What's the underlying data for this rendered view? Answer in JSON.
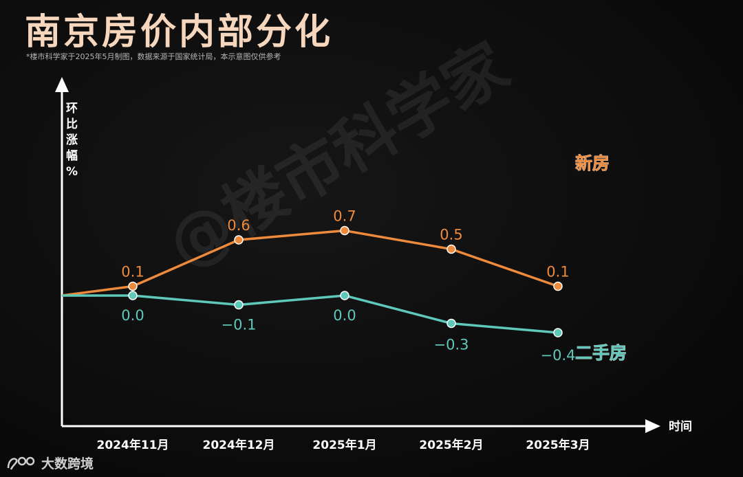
{
  "title": "南京房价内部分化",
  "subtitle": "*楼市科学家于2025年5月制图，数据来源于国家统计局，本示意图仅供参考",
  "watermark": "@楼市科学家",
  "footer": {
    "brand": "大数跨境"
  },
  "chart_data": {
    "type": "line",
    "ylabel": "环比涨幅%",
    "xlabel": "时间",
    "categories": [
      "2024年11月",
      "2024年12月",
      "2025年1月",
      "2025年2月",
      "2025年3月"
    ],
    "series": [
      {
        "name": "新房",
        "color": "#ee8a3c",
        "values": [
          0.1,
          0.6,
          0.7,
          0.5,
          0.1
        ],
        "labels": [
          "0.1",
          "0.6",
          "0.7",
          "0.5",
          "0.1"
        ]
      },
      {
        "name": "二手房",
        "color": "#5ec8bb",
        "values": [
          0.0,
          -0.1,
          0.0,
          -0.3,
          -0.4
        ],
        "labels": [
          "0.0",
          "−0.1",
          "0.0",
          "−0.3",
          "−0.4"
        ]
      }
    ],
    "grid": false,
    "legend": "series names at right end of lines"
  }
}
